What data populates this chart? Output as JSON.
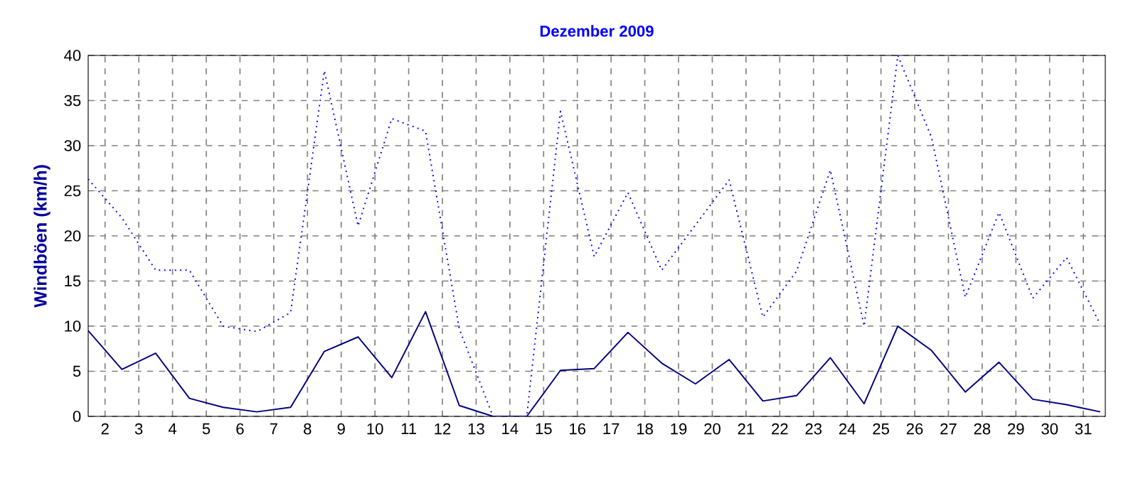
{
  "chart_data": {
    "type": "line",
    "title": "Dezember 2009",
    "ylabel": "Windböen (km/h)",
    "x": [
      1.5,
      2.5,
      3.5,
      4.5,
      5.5,
      6.5,
      7.5,
      8.5,
      9.5,
      10.5,
      11.5,
      12.5,
      13.5,
      14.5,
      15.5,
      16.5,
      17.5,
      18.5,
      19.5,
      20.5,
      21.5,
      22.5,
      23.5,
      24.5,
      25.5,
      26.5,
      27.5,
      28.5,
      29.5,
      30.5,
      31.5
    ],
    "series": [
      {
        "color": "#0000ff",
        "line_style": "dotted",
        "values": [
          26.3,
          22.0,
          16.2,
          16.2,
          10.0,
          9.4,
          11.5,
          38.3,
          21.1,
          33.0,
          31.6,
          9.7,
          0,
          0,
          33.8,
          17.7,
          24.8,
          16.2,
          21.2,
          26.2,
          11.0,
          16.1,
          27.3,
          10.0,
          40.0,
          30.9,
          13.2,
          22.6,
          13.1,
          17.6,
          10.2
        ]
      },
      {
        "color": "#000080",
        "line_style": "solid",
        "values": [
          9.5,
          5.2,
          7.0,
          2.0,
          1.0,
          0.5,
          1.0,
          7.2,
          8.8,
          4.3,
          11.6,
          1.2,
          0,
          0,
          5.1,
          5.3,
          9.3,
          5.9,
          3.6,
          6.3,
          1.7,
          2.3,
          6.5,
          1.4,
          10.0,
          7.3,
          2.7,
          6.0,
          1.9,
          1.3,
          0.5
        ]
      }
    ],
    "xlim": [
      1.5,
      31.65
    ],
    "ylim": [
      0,
      40
    ],
    "xticks": [
      2,
      3,
      4,
      5,
      6,
      7,
      8,
      9,
      10,
      11,
      12,
      13,
      14,
      15,
      16,
      17,
      18,
      19,
      20,
      21,
      22,
      23,
      24,
      25,
      26,
      27,
      28,
      29,
      30,
      31
    ],
    "yticks": [
      0,
      5,
      10,
      15,
      20,
      25,
      30,
      35,
      40
    ],
    "grid": true
  }
}
